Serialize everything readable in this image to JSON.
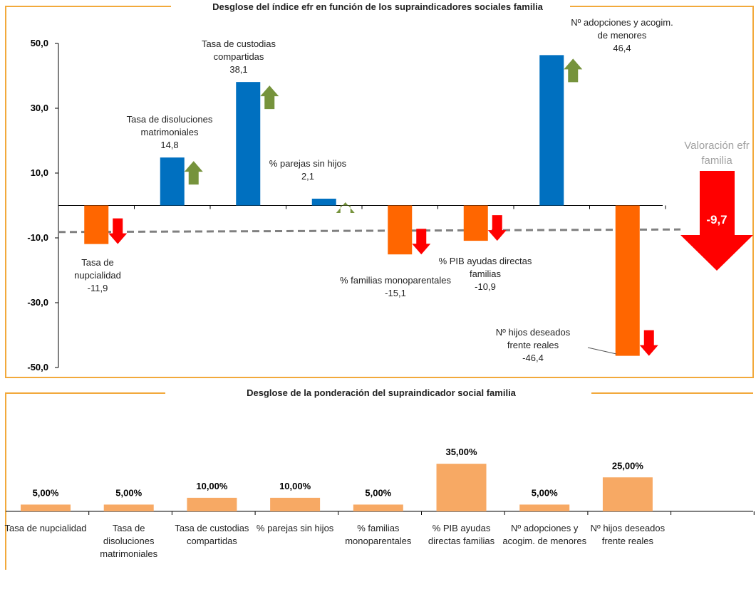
{
  "charts": [
    {
      "chart_data": {
        "type": "bar",
        "title": "Desglose del índice efr en función de los supraindicadores sociales familia",
        "categories": [
          "Tasa de nupcialidad",
          "Tasa de disoluciones matrimoniales",
          "Tasa de custodias compartidas",
          "% parejas sin hijos",
          "% familias monoparentales",
          "% PIB ayudas directas familias",
          "Nº adopciones y acogim. de menores",
          "Nº hijos deseados frente reales"
        ],
        "values": [
          -11.9,
          14.8,
          38.1,
          2.1,
          -15.1,
          -10.9,
          46.4,
          -46.4
        ],
        "value_labels": [
          "-11,9",
          "14,8",
          "38,1",
          "2,1",
          "-15,1",
          "-10,9",
          "46,4",
          "-46,4"
        ],
        "positive_color": "#0070c0",
        "negative_color": "#ff6600",
        "ylim": [
          -50,
          50
        ],
        "yticks": [
          {
            "value": 50,
            "label": "50,0"
          },
          {
            "value": 30,
            "label": "30,0"
          },
          {
            "value": 10,
            "label": "10,0"
          },
          {
            "value": -10,
            "label": "-10,0"
          },
          {
            "value": -30,
            "label": "-30,0"
          },
          {
            "value": -50,
            "label": "-50,0"
          }
        ],
        "trend_line": {
          "start": -8.2,
          "end": -7.4,
          "color": "#808080"
        },
        "summary": {
          "label": "Valoración efr familia",
          "value": -9.7,
          "value_label": "-9,7"
        }
      }
    },
    {
      "chart_data": {
        "type": "bar",
        "title": "Desglose de la ponderación del supraindicador social familia",
        "categories": [
          "Tasa de nupcialidad",
          "Tasa de disoluciones matrimoniales",
          "Tasa de custodias compartidas",
          "% parejas sin hijos",
          "% familias monoparentales",
          "% PIB ayudas directas familias",
          "Nº adopciones y acogim. de menores",
          "Nº hijos deseados frente reales"
        ],
        "values": [
          5,
          5,
          10,
          10,
          5,
          35,
          5,
          25
        ],
        "value_labels": [
          "5,00%",
          "5,00%",
          "10,00%",
          "10,00%",
          "5,00%",
          "35,00%",
          "5,00%",
          "25,00%"
        ],
        "color": "#f7a964"
      }
    }
  ]
}
